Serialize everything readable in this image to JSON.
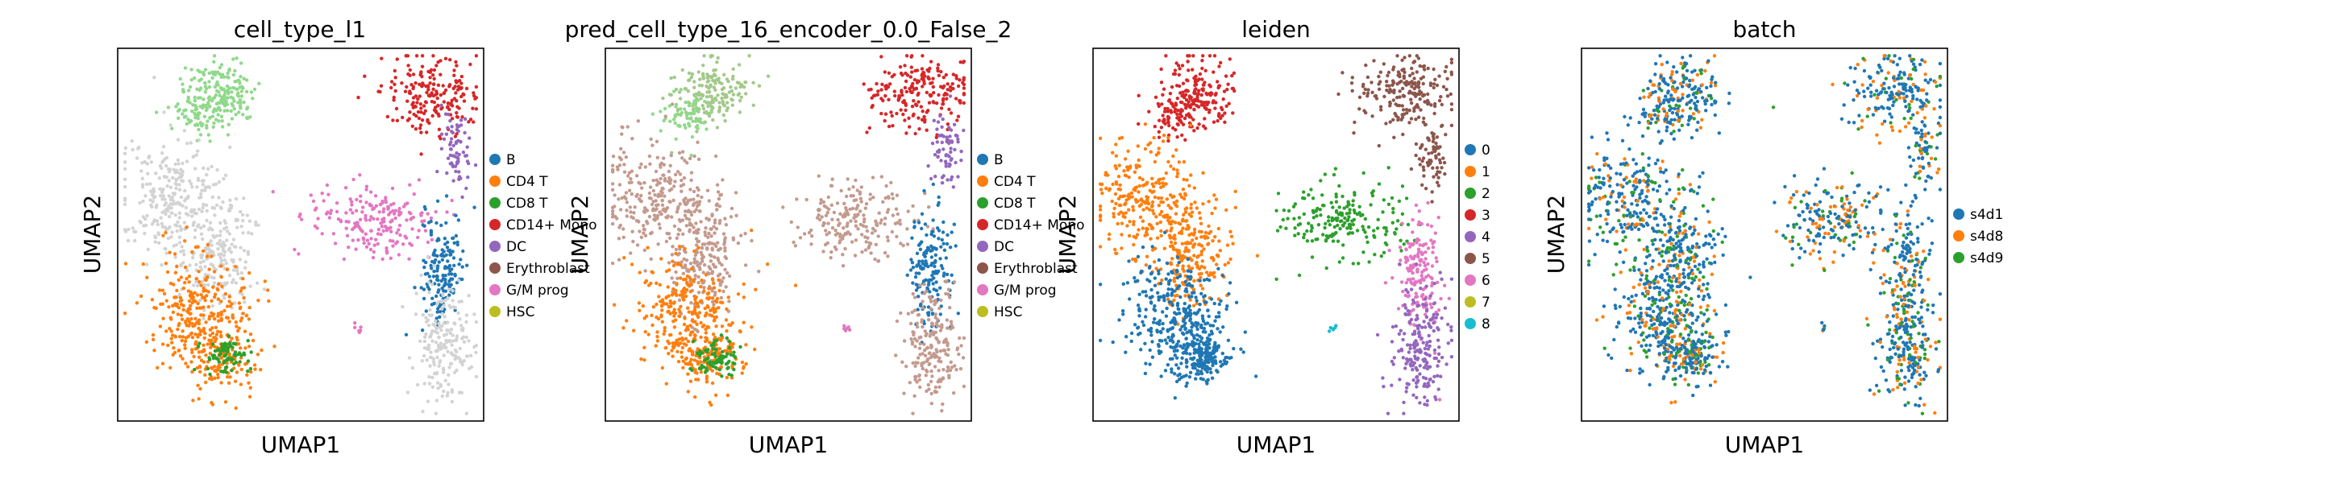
{
  "chart_data": [
    {
      "type": "scatter",
      "title": "cell_type_l1",
      "xlabel": "UMAP1",
      "ylabel": "UMAP2",
      "legend": [
        "B",
        "CD4 T",
        "CD8 T",
        "CD14+ Mono",
        "DC",
        "Erythroblast",
        "G/M prog",
        "HSC"
      ],
      "legend_colors": [
        "#1f77b4",
        "#ff7f0e",
        "#2ca02c",
        "#d62728",
        "#9467bd",
        "#8c564b",
        "#e377c2",
        "#bcbd22"
      ],
      "legend_placement": "right",
      "grid": false
    },
    {
      "type": "scatter",
      "title": "pred_cell_type_16_encoder_0.0_False_2",
      "xlabel": "UMAP1",
      "ylabel": "UMAP2",
      "legend": [
        "B",
        "CD4 T",
        "CD8 T",
        "CD14+ Mono",
        "DC",
        "Erythroblast",
        "G/M prog",
        "HSC"
      ],
      "legend_colors": [
        "#1f77b4",
        "#ff7f0e",
        "#2ca02c",
        "#d62728",
        "#9467bd",
        "#8c564b",
        "#e377c2",
        "#bcbd22"
      ],
      "legend_placement": "right",
      "grid": false
    },
    {
      "type": "scatter",
      "title": "leiden",
      "xlabel": "UMAP1",
      "ylabel": "UMAP2",
      "legend": [
        "0",
        "1",
        "2",
        "3",
        "4",
        "5",
        "6",
        "7",
        "8"
      ],
      "legend_colors": [
        "#1f77b4",
        "#ff7f0e",
        "#2ca02c",
        "#d62728",
        "#9467bd",
        "#8c564b",
        "#e377c2",
        "#bcbd22",
        "#17becf"
      ],
      "legend_placement": "right",
      "grid": false
    },
    {
      "type": "scatter",
      "title": "batch",
      "xlabel": "UMAP1",
      "ylabel": "UMAP2",
      "legend": [
        "s4d1",
        "s4d8",
        "s4d9"
      ],
      "legend_colors": [
        "#1f77b4",
        "#ff7f0e",
        "#2ca02c"
      ],
      "legend_placement": "right",
      "grid": false
    }
  ]
}
